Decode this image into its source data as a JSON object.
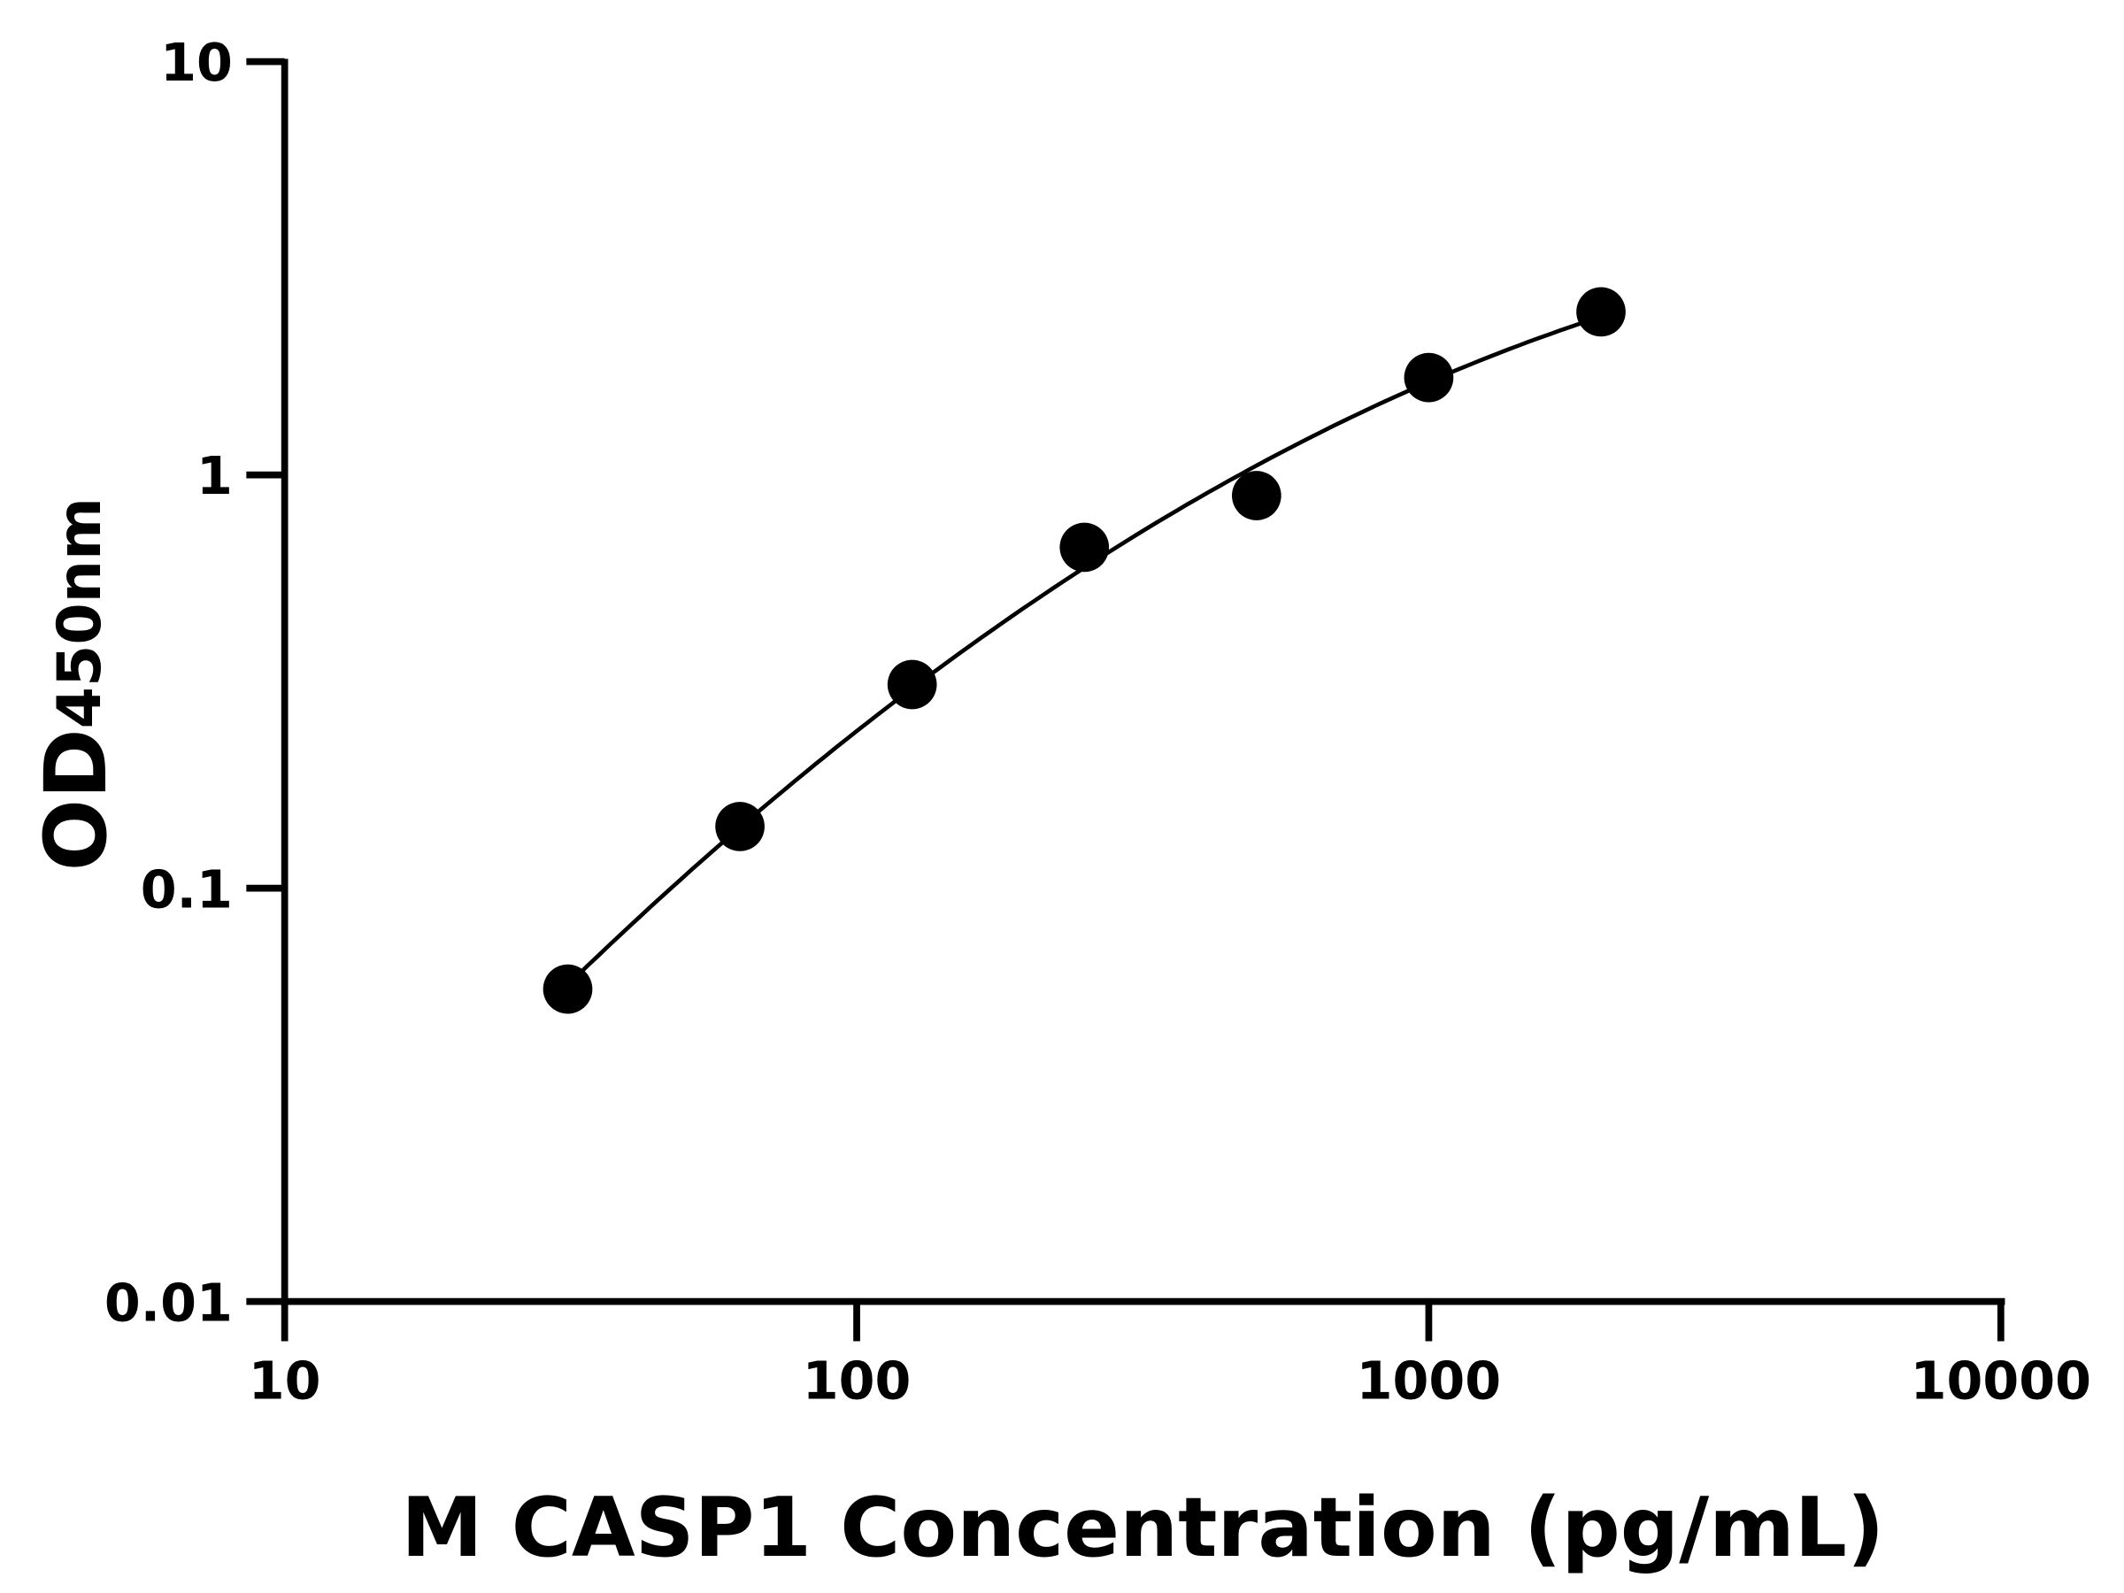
{
  "chart_data": {
    "type": "scatter",
    "title": "",
    "xlabel": "M CASP1 Concentration (pg/mL)",
    "ylabel": "OD",
    "ylabel_subscript": "450nm",
    "x_scale": "log",
    "y_scale": "log",
    "xlim": [
      10,
      10000
    ],
    "ylim": [
      0.01,
      10
    ],
    "x_ticks": [
      "10",
      "100",
      "1000",
      "10000"
    ],
    "y_ticks": [
      "0.01",
      "0.1",
      "1",
      "10"
    ],
    "grid": false,
    "legend": "none",
    "fit_curve": true,
    "color": "#000000",
    "series": [
      {
        "x": [
          31.25,
          62.5,
          125,
          250,
          500,
          1000,
          2000
        ],
        "y": [
          0.057,
          0.141,
          0.311,
          0.668,
          0.891,
          1.72,
          2.48
        ]
      }
    ]
  }
}
